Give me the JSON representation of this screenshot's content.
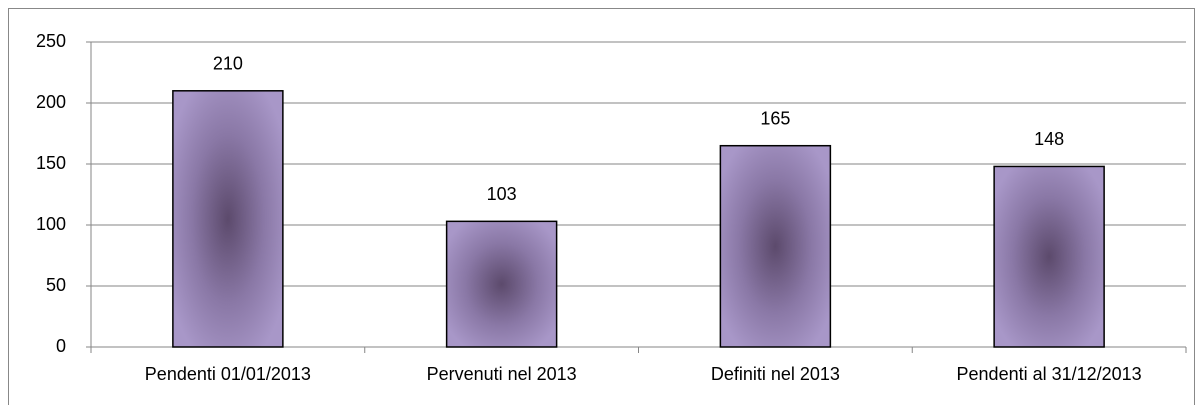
{
  "chart_data": {
    "type": "bar",
    "categories": [
      "Pendenti 01/01/2013",
      "Pervenuti nel 2013",
      "Definiti nel 2013",
      "Pendenti al 31/12/2013"
    ],
    "values": [
      210,
      103,
      165,
      148
    ],
    "color": "#a795c6",
    "ylim": [
      0,
      250
    ],
    "yticks": [
      0,
      50,
      100,
      150,
      200,
      250
    ],
    "grid": true
  }
}
